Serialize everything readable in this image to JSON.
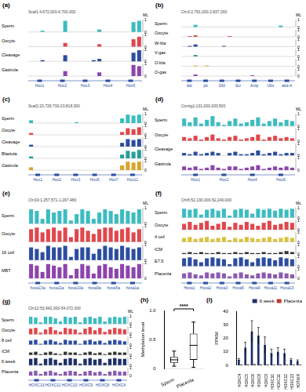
{
  "ml": {
    "label": "ML",
    "ylim": [
      0,
      1
    ],
    "ticks": [
      0,
      1
    ]
  },
  "panels": [
    {
      "label": "(a)",
      "coords": "Scaf1:4,672,000-4,700,000",
      "genes": [
        "Hox1",
        "Hox2",
        "Hox3",
        "Hox4",
        "Hox5"
      ],
      "tracks": [
        {
          "name": "Sperm",
          "color": "#3cbcc0",
          "values": [
            0,
            0,
            0.1,
            0,
            0,
            0,
            0.9,
            0,
            0,
            0,
            0,
            0,
            0.2,
            0,
            0,
            0,
            0,
            0,
            0.8,
            0.9
          ]
        },
        {
          "name": "Oocyte",
          "color": "#e0474c",
          "values": [
            0,
            0,
            0,
            0,
            0,
            0,
            0.3,
            0,
            0,
            0,
            0,
            0,
            0.2,
            0,
            0,
            0,
            0,
            0,
            0.6,
            0.8
          ]
        },
        {
          "name": "Cleavage",
          "color": "#2c4da0",
          "values": [
            0,
            0,
            0.1,
            0,
            0,
            0,
            0.5,
            0,
            0,
            0,
            0,
            0.1,
            0.2,
            0,
            0,
            0,
            0,
            0,
            0.7,
            0.9
          ]
        },
        {
          "name": "Gastrula",
          "color": "#8e44ad",
          "values": [
            0,
            0,
            0,
            0,
            0,
            0,
            0.4,
            0,
            0,
            0,
            0,
            0,
            0.3,
            0,
            0,
            0,
            0,
            0,
            0.9,
            0.8
          ]
        }
      ]
    },
    {
      "label": "(b)",
      "coords": "Chr3:2,791,000-2,837,000",
      "genes": [
        "lab",
        "pb",
        "Dfd",
        "Scr",
        "Antp",
        "Ubx",
        "abd-A"
      ],
      "tracks": [
        {
          "name": "Sperm",
          "color": "#3cbcc0",
          "values": [
            0,
            0,
            0.3,
            0,
            0,
            0,
            0,
            0,
            0,
            0,
            0,
            0,
            0,
            0,
            0,
            0,
            0,
            0.2,
            0,
            0
          ]
        },
        {
          "name": "Oocyte",
          "color": "#e0474c",
          "values": [
            0,
            0.1,
            0.2,
            0,
            0,
            0,
            0,
            0,
            0.1,
            0,
            0,
            0,
            0,
            0,
            0,
            0,
            0,
            0,
            0,
            0
          ]
        },
        {
          "name": "W-bla",
          "color": "#2c4da0",
          "values": [
            0,
            0.1,
            0.3,
            0,
            0,
            0,
            0,
            0.1,
            0,
            0,
            0,
            0,
            0,
            0,
            0,
            0,
            0,
            0,
            0,
            0
          ]
        },
        {
          "name": "V-gas",
          "color": "#3a9e6e",
          "values": [
            0,
            0,
            0.2,
            0,
            0,
            0,
            0,
            0,
            0,
            0,
            0,
            0,
            0,
            0,
            0,
            0,
            0,
            0,
            0,
            0
          ]
        },
        {
          "name": "O-bla",
          "color": "#d8a42c",
          "values": [
            0,
            0,
            0.1,
            0,
            0.1,
            0,
            0,
            0,
            0,
            0,
            0,
            0,
            0,
            0,
            0,
            0,
            0,
            0,
            0,
            0
          ]
        },
        {
          "name": "O-gas",
          "color": "#8e44ad",
          "values": [
            0,
            0,
            0.2,
            0,
            0,
            0,
            0,
            0,
            0,
            0,
            0,
            0,
            0.1,
            0,
            0,
            0,
            0,
            0,
            0,
            0
          ]
        }
      ]
    },
    {
      "label": "(c)",
      "coords": "Scaf2:23,726,700-23,818,300",
      "genes": [
        "Hox1",
        "Hox2",
        "Hox3",
        "Hox5",
        "Hox7",
        "Hox11"
      ],
      "tracks": [
        {
          "name": "Sperm",
          "color": "#3cbcc0",
          "values": [
            0.3,
            0,
            0,
            0,
            0,
            0,
            0,
            0,
            0.1,
            0,
            0,
            0,
            0,
            0,
            0,
            0,
            0.5,
            0.9,
            0.8,
            0.9
          ]
        },
        {
          "name": "Oocyte",
          "color": "#e0474c",
          "values": [
            0.2,
            0,
            0,
            0,
            0,
            0,
            0,
            0,
            0,
            0,
            0,
            0,
            0,
            0,
            0,
            0,
            0.3,
            0.7,
            0.6,
            0.8
          ]
        },
        {
          "name": "Cleavage",
          "color": "#2c4da0",
          "values": [
            0.2,
            0,
            0,
            0,
            0,
            0,
            0,
            0,
            0,
            0,
            0,
            0,
            0,
            0,
            0,
            0,
            0.4,
            0.8,
            0.7,
            0.8
          ]
        },
        {
          "name": "Blastula",
          "color": "#2a9d9a",
          "values": [
            0.2,
            0,
            0,
            0,
            0,
            0,
            0,
            0,
            0,
            0,
            0,
            0,
            0,
            0,
            0,
            0,
            0.4,
            0.8,
            0.7,
            0.9
          ]
        },
        {
          "name": "Gastrula",
          "color": "#d8a42c",
          "values": [
            0.3,
            0,
            0,
            0,
            0,
            0,
            0,
            0,
            0,
            0,
            0,
            0,
            0,
            0,
            0,
            0,
            0.5,
            0.9,
            0.8,
            0.9
          ]
        }
      ]
    },
    {
      "label": "(d)",
      "coords": "Contig1:131,000-200,500",
      "genes": [
        "Hox1",
        "Hox2",
        "Hox4",
        "Hox5"
      ],
      "tracks": [
        {
          "name": "Sperm",
          "color": "#3cbcc0",
          "values": [
            0.6,
            0.3,
            0.7,
            0.2,
            0.5,
            0.8,
            0.3,
            0.1,
            0.4,
            0.6,
            0.2,
            0.3,
            0.5,
            0.7,
            0.2,
            0.4,
            0.6,
            0.3,
            0.5,
            0.4
          ]
        },
        {
          "name": "Oocyte",
          "color": "#e0474c",
          "values": [
            0.3,
            0.2,
            0.4,
            0.1,
            0.3,
            0.5,
            0.2,
            0.1,
            0.3,
            0.4,
            0.1,
            0.2,
            0.3,
            0.5,
            0.1,
            0.3,
            0.4,
            0.2,
            0.3,
            0.2
          ]
        },
        {
          "name": "Cleavage",
          "color": "#2c4da0",
          "values": [
            0.2,
            0.1,
            0.3,
            0.1,
            0.2,
            0.3,
            0.2,
            0,
            0.2,
            0.3,
            0.1,
            0.1,
            0.2,
            0.4,
            0.1,
            0.2,
            0.3,
            0.1,
            0.2,
            0.2
          ]
        },
        {
          "name": "Gastrula",
          "color": "#8e44ad",
          "values": [
            0.3,
            0.2,
            0.3,
            0.1,
            0.2,
            0.4,
            0.2,
            0.1,
            0.3,
            0.3,
            0.1,
            0.2,
            0.3,
            0.4,
            0.1,
            0.2,
            0.3,
            0.2,
            0.3,
            0.2
          ]
        }
      ]
    },
    {
      "label": "(e)",
      "coords": "Chr19:1,257,571-1,297,480",
      "genes": [
        "hoxa13a",
        "hoxa11a",
        "hoxa10a",
        "hoxa9a",
        "hoxa5a",
        "hoxa1a"
      ],
      "tracks": [
        {
          "name": "Sperm",
          "color": "#3cbcc0",
          "values": [
            0.9,
            0.8,
            0.3,
            0.9,
            0.7,
            0.8,
            0.9,
            0.2,
            0.6,
            0.9,
            0.8,
            0.3,
            0.7,
            0.9,
            0.8,
            0.6,
            0.9,
            0.8,
            0.7,
            0.9
          ]
        },
        {
          "name": "Oocyte",
          "color": "#e0474c",
          "values": [
            0.8,
            0.9,
            0.6,
            0.8,
            0.9,
            0.7,
            0.9,
            0.3,
            0.8,
            0.9,
            0.7,
            0.5,
            0.8,
            0.9,
            0.9,
            0.7,
            0.8,
            0.9,
            0.6,
            0.8
          ]
        },
        {
          "name": "16 cell",
          "color": "#2c4da0",
          "values": [
            0.8,
            0.7,
            0.5,
            0.9,
            0.8,
            0.8,
            0.9,
            0.2,
            0.7,
            0.8,
            0.8,
            0.4,
            0.7,
            0.9,
            0.8,
            0.7,
            0.9,
            0.8,
            0.7,
            0.8
          ]
        },
        {
          "name": "MBT",
          "color": "#8e44ad",
          "values": [
            0.9,
            0.8,
            0.4,
            0.9,
            0.8,
            0.7,
            0.9,
            0.2,
            0.6,
            0.9,
            0.8,
            0.3,
            0.8,
            0.9,
            0.7,
            0.6,
            0.9,
            0.8,
            0.7,
            0.9
          ]
        }
      ]
    },
    {
      "label": "(f)",
      "coords": "Chr6:52,130,000-52,240,000",
      "genes": [
        "Hoxa1",
        "Hoxa2",
        "Hoxa3",
        "Hoxa5",
        "Hoxa9",
        "Hoxa11",
        "Hoxa13"
      ],
      "tracks": [
        {
          "name": "Sperm",
          "color": "#3cbcc0",
          "values": [
            0.9,
            0.8,
            0.9,
            0.3,
            0.8,
            0.9,
            0.7,
            0.9,
            0.2,
            0.8,
            0.9,
            0.8,
            0.4,
            0.9,
            0.8,
            0.9,
            0.7,
            0.9,
            0.8,
            0.9
          ]
        },
        {
          "name": "Oocyte",
          "color": "#e0474c",
          "values": [
            0.6,
            0.8,
            0.5,
            0.7,
            0.9,
            0.4,
            0.6,
            0.8,
            0.3,
            0.7,
            0.5,
            0.8,
            0.6,
            0.4,
            0.7,
            0.9,
            0.5,
            0.6,
            0.8,
            0.7
          ]
        },
        {
          "name": "4 cell",
          "color": "#d8c23a",
          "values": [
            0.4,
            0.5,
            0.3,
            0.4,
            0.5,
            0.3,
            0.4,
            0.5,
            0.2,
            0.4,
            0.3,
            0.5,
            0.4,
            0.3,
            0.4,
            0.5,
            0.3,
            0.4,
            0.5,
            0.4
          ]
        },
        {
          "name": "ICM",
          "color": "#333333",
          "values": [
            0.1,
            0.2,
            0.1,
            0.2,
            0.1,
            0.1,
            0.2,
            0.1,
            0.1,
            0.2,
            0.1,
            0.2,
            0.1,
            0.1,
            0.2,
            0.1,
            0.1,
            0.2,
            0.3,
            0.2
          ]
        },
        {
          "name": "E7.5",
          "color": "#2c4da0",
          "values": [
            0.8,
            0.9,
            0.7,
            0.4,
            0.8,
            0.9,
            0.8,
            0.7,
            0.2,
            0.8,
            0.9,
            0.7,
            0.4,
            0.8,
            0.9,
            0.8,
            0.6,
            0.9,
            0.8,
            0.7
          ]
        },
        {
          "name": "Placenta",
          "color": "#8a5ab0",
          "values": [
            0.5,
            0.6,
            0.4,
            0.3,
            0.6,
            0.5,
            0.6,
            0.5,
            0.2,
            0.5,
            0.6,
            0.4,
            0.3,
            0.5,
            0.6,
            0.5,
            0.4,
            0.6,
            0.5,
            0.4
          ]
        }
      ]
    },
    {
      "label": "(g)",
      "coords": "Chr12:53,942,000-54,072,000",
      "genes": [
        "HOXC13",
        "HOXC11",
        "HOXC10",
        "HOXC9",
        "HOXC8",
        "HOXC4"
      ],
      "tracks": [
        {
          "name": "Sperm",
          "color": "#3cbcc0",
          "values": [
            0.9,
            0.8,
            0.2,
            0.9,
            0.9,
            0.7,
            0.3,
            0.9,
            0.8,
            0.9,
            0.2,
            0.8,
            0.9,
            0.7,
            0.9,
            0.3,
            0.8,
            0.9,
            0.8,
            0.9
          ]
        },
        {
          "name": "Oocyte",
          "color": "#e0474c",
          "values": [
            0.7,
            0.8,
            0.2,
            0.6,
            0.9,
            0.5,
            0.3,
            0.8,
            0.7,
            0.6,
            0.2,
            0.7,
            0.9,
            0.5,
            0.8,
            0.3,
            0.6,
            0.8,
            0.7,
            0.6
          ]
        },
        {
          "name": "8 cell",
          "color": "#2c4da0",
          "values": [
            0.5,
            0.6,
            0.1,
            0.5,
            0.6,
            0.4,
            0.2,
            0.6,
            0.5,
            0.5,
            0.1,
            0.5,
            0.6,
            0.4,
            0.5,
            0.2,
            0.5,
            0.6,
            0.5,
            0.4
          ]
        },
        {
          "name": "ICM",
          "color": "#333333",
          "values": [
            0.3,
            0.4,
            0.1,
            0.3,
            0.4,
            0.2,
            0.1,
            0.4,
            0.3,
            0.3,
            0.1,
            0.3,
            0.4,
            0.2,
            0.3,
            0.1,
            0.3,
            0.4,
            0.3,
            0.3
          ]
        },
        {
          "name": "6 week",
          "color": "#1f2f66",
          "values": [
            0.8,
            0.9,
            0.2,
            0.8,
            0.9,
            0.7,
            0.3,
            0.8,
            0.9,
            0.8,
            0.2,
            0.8,
            0.9,
            0.7,
            0.8,
            0.3,
            0.8,
            0.9,
            0.8,
            0.8
          ]
        },
        {
          "name": "Placenta",
          "color": "#8a5ab0",
          "values": [
            0.5,
            0.6,
            0.2,
            0.5,
            0.6,
            0.4,
            0.2,
            0.5,
            0.6,
            0.5,
            0.2,
            0.5,
            0.6,
            0.4,
            0.5,
            0.2,
            0.5,
            0.6,
            0.5,
            0.5
          ]
        }
      ]
    }
  ],
  "chart_data": [
    {
      "type": "box",
      "panel": "(h)",
      "categories": [
        "Sperm",
        "Placenta"
      ],
      "q1": [
        0.1,
        0.15
      ],
      "median": [
        0.15,
        0.4
      ],
      "q3": [
        0.2,
        0.6
      ],
      "whisker_low": [
        0.04,
        0.02
      ],
      "whisker_high": [
        0.3,
        0.8
      ],
      "y_label": "Methylation level",
      "ylim": [
        0,
        1
      ],
      "yticks": [
        0,
        0.5,
        1
      ],
      "annotation": "****",
      "color": "#000000"
    },
    {
      "type": "bar",
      "panel": "(i)",
      "y_label": "FPKM",
      "categories": [
        "HOXC4",
        "HOXC5",
        "HOXC6",
        "HOXC8",
        "HOXC9",
        "HOXC10",
        "HOXC11",
        "HOXC12",
        "HOXC13",
        "HOTAIR"
      ],
      "series": [
        {
          "name": "6 week",
          "color": "#1f2f66",
          "values": [
            4,
            13,
            25,
            22,
            15,
            9,
            10,
            9,
            4,
            3
          ],
          "errors": [
            1,
            4,
            8,
            6,
            6,
            3,
            3,
            3,
            1,
            1
          ]
        },
        {
          "name": "Placenta",
          "color": "#c0392b",
          "values": [
            0.2,
            0.3,
            0.5,
            0.3,
            0.2,
            0.1,
            0.2,
            0.1,
            0.1,
            0.1
          ],
          "errors": [
            0.1,
            0.1,
            0.2,
            0.1,
            0.1,
            0.05,
            0.1,
            0.05,
            0.05,
            0.05
          ]
        }
      ],
      "ylim": [
        0,
        40
      ],
      "yticks": [
        0,
        10,
        20,
        30,
        40
      ],
      "legend": "upper right"
    }
  ]
}
